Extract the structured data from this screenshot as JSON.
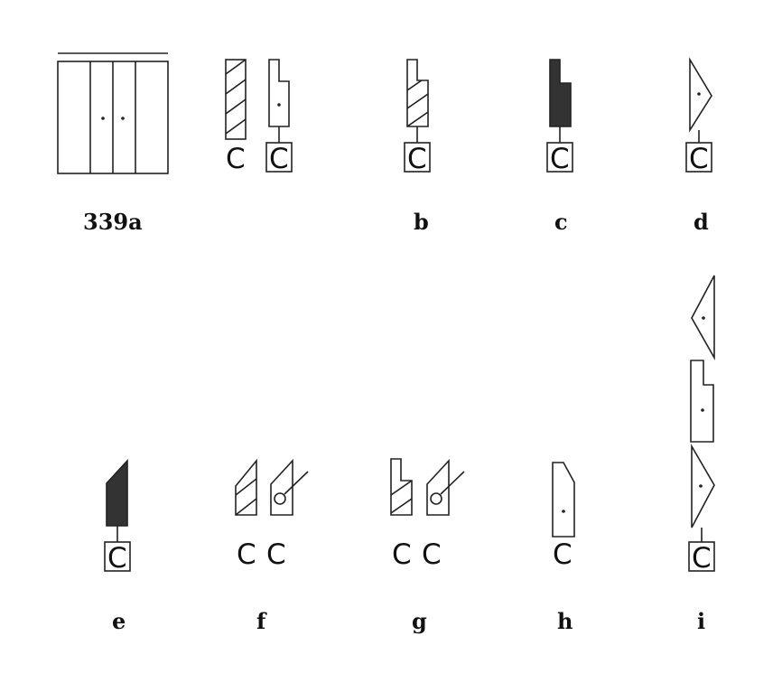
{
  "labels": {
    "a": "339a",
    "b": "b",
    "c": "c",
    "d": "d",
    "e": "e",
    "f": "f",
    "g": "g",
    "h": "h",
    "i": "i"
  },
  "c_letter": "C"
}
